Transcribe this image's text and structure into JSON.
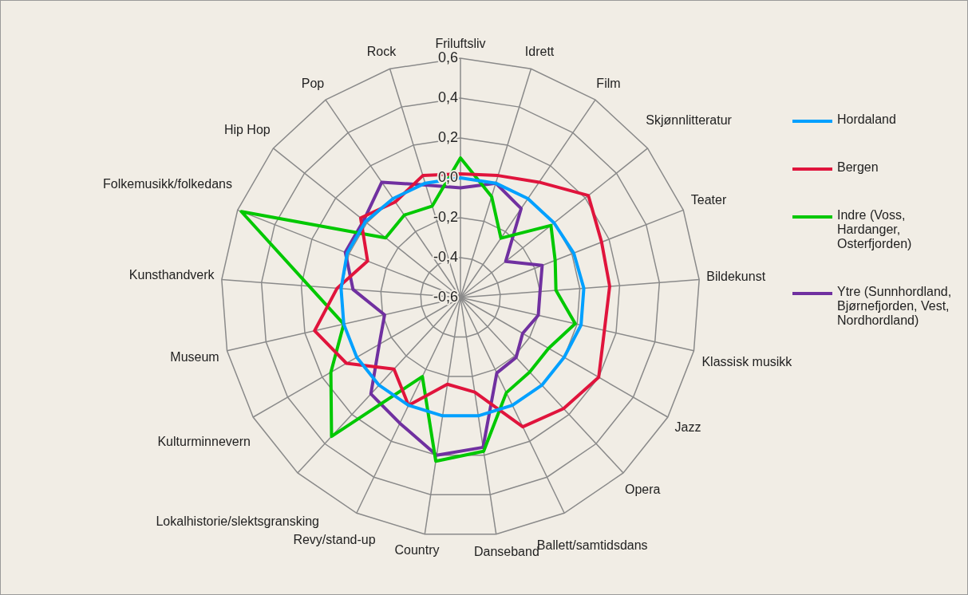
{
  "chart_data": {
    "type": "radar",
    "categories": [
      "Friluftsliv",
      "Idrett",
      "Film",
      "Skjønnlitteratur",
      "Teater",
      "Bildekunst",
      "Klassisk musikk",
      "Jazz",
      "Opera",
      "Ballett/samtidsdans",
      "Danseband",
      "Country",
      "Revy/stand-up",
      "Lokalhistorie/slektsgransking",
      "Kulturminnevern",
      "Museum",
      "Kunsthandverk",
      "Folkemusikk/folkedans",
      "Hip Hop",
      "Pop",
      "Rock"
    ],
    "series": [
      {
        "name": "Hordaland",
        "color": "#00a0ff",
        "values": [
          0.0,
          0.0,
          0.0,
          0.0,
          0.01,
          0.02,
          0.02,
          0.0,
          0.0,
          0.0,
          0.0,
          0.0,
          0.0,
          0.0,
          0.0,
          0.0,
          0.0,
          0.01,
          0.01,
          0.0,
          0.0
        ]
      },
      {
        "name": "Bergen",
        "color": "#e0143c",
        "values": [
          0.02,
          0.04,
          0.1,
          0.22,
          0.16,
          0.15,
          0.14,
          0.2,
          0.16,
          0.12,
          -0.12,
          -0.16,
          0.0,
          -0.11,
          0.06,
          0.15,
          0.02,
          -0.1,
          0.04,
          -0.02,
          0.04
        ]
      },
      {
        "name": "Indre (Voss, Hardanger, Osterfjorden)",
        "color": "#00c800",
        "values": [
          0.1,
          -0.07,
          -0.24,
          -0.02,
          -0.09,
          -0.12,
          -0.01,
          -0.09,
          -0.09,
          -0.07,
          0.18,
          0.23,
          -0.16,
          0.35,
          0.15,
          0.0,
          0.16,
          0.58,
          -0.12,
          -0.1,
          -0.12
        ]
      },
      {
        "name": "Ytre (Sunnhordland, Bjørnefjorden, Vest, Nordhordland)",
        "color": "#7030a0",
        "values": [
          -0.05,
          0.0,
          -0.06,
          -0.31,
          -0.16,
          -0.2,
          -0.2,
          -0.24,
          -0.19,
          -0.18,
          0.16,
          0.2,
          0.1,
          0.06,
          -0.13,
          -0.21,
          -0.06,
          0.02,
          0.02,
          0.1,
          -0.01
        ]
      }
    ],
    "ylim": [
      -0.6,
      0.6
    ],
    "yticks": [
      {
        "value": -0.6,
        "label": "-0,6"
      },
      {
        "value": -0.4,
        "label": "-0,4"
      },
      {
        "value": -0.2,
        "label": "-0,2"
      },
      {
        "value": 0,
        "label": "0,0"
      },
      {
        "value": 0.2,
        "label": "0,2"
      },
      {
        "value": 0.4,
        "label": "0,4"
      },
      {
        "value": 0.6,
        "label": "0,6"
      }
    ],
    "grid": true,
    "legend": "right"
  }
}
